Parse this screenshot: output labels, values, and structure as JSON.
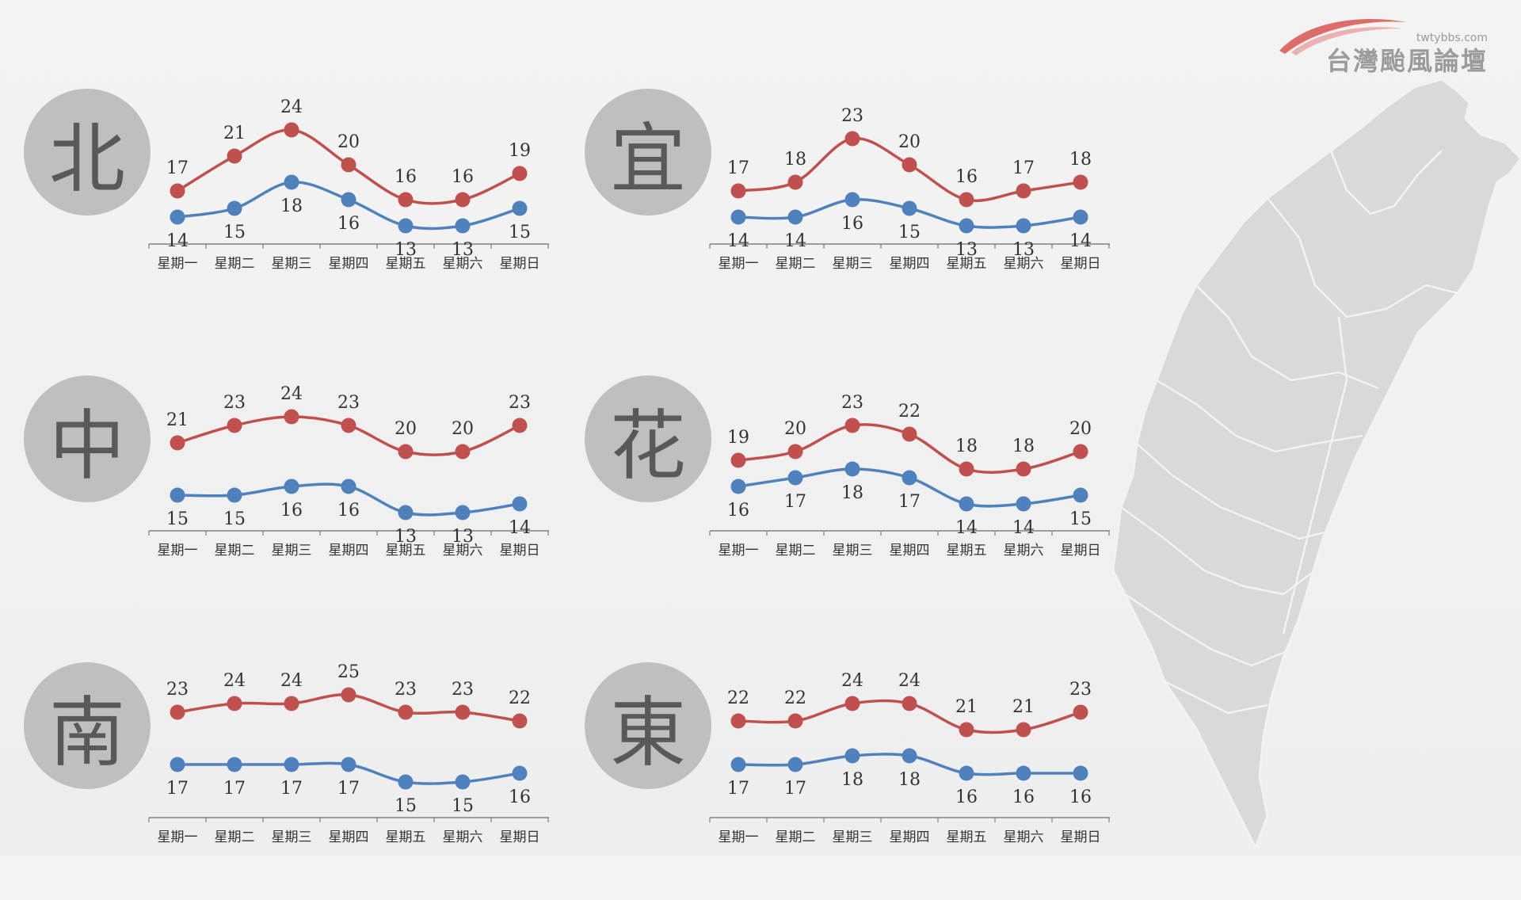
{
  "brand": {
    "url": "twtybbs.com",
    "title": "台灣颱風論壇"
  },
  "colors": {
    "high": "#c0504d",
    "low": "#4f81bd",
    "circle": "#bfbfbf",
    "circle_text": "#595959",
    "map": "#d9d9d9"
  },
  "days": [
    "星期一",
    "星期二",
    "星期三",
    "星期四",
    "星期五",
    "星期六",
    "星期日"
  ],
  "chart_data": [
    {
      "type": "line",
      "region": "北",
      "x": [
        "星期一",
        "星期二",
        "星期三",
        "星期四",
        "星期五",
        "星期六",
        "星期日"
      ],
      "series": [
        {
          "values": [
            17,
            21,
            24,
            20,
            16,
            16,
            19
          ],
          "color": "#c0504d"
        },
        {
          "values": [
            14,
            15,
            18,
            16,
            13,
            13,
            15
          ],
          "color": "#4f81bd"
        }
      ]
    },
    {
      "type": "line",
      "region": "宜",
      "x": [
        "星期一",
        "星期二",
        "星期三",
        "星期四",
        "星期五",
        "星期六",
        "星期日"
      ],
      "series": [
        {
          "values": [
            17,
            18,
            23,
            20,
            16,
            17,
            18
          ],
          "color": "#c0504d"
        },
        {
          "values": [
            14,
            14,
            16,
            15,
            13,
            13,
            14
          ],
          "color": "#4f81bd"
        }
      ]
    },
    {
      "type": "line",
      "region": "中",
      "x": [
        "星期一",
        "星期二",
        "星期三",
        "星期四",
        "星期五",
        "星期六",
        "星期日"
      ],
      "series": [
        {
          "values": [
            21,
            23,
            24,
            23,
            20,
            20,
            23
          ],
          "color": "#c0504d"
        },
        {
          "values": [
            15,
            15,
            16,
            16,
            13,
            13,
            14
          ],
          "color": "#4f81bd"
        }
      ]
    },
    {
      "type": "line",
      "region": "花",
      "x": [
        "星期一",
        "星期二",
        "星期三",
        "星期四",
        "星期五",
        "星期六",
        "星期日"
      ],
      "series": [
        {
          "values": [
            19,
            20,
            23,
            22,
            18,
            18,
            20
          ],
          "color": "#c0504d"
        },
        {
          "values": [
            16,
            17,
            18,
            17,
            14,
            14,
            15
          ],
          "color": "#4f81bd"
        }
      ]
    },
    {
      "type": "line",
      "region": "南",
      "x": [
        "星期一",
        "星期二",
        "星期三",
        "星期四",
        "星期五",
        "星期六",
        "星期日"
      ],
      "series": [
        {
          "values": [
            23,
            24,
            24,
            25,
            23,
            23,
            22
          ],
          "color": "#c0504d"
        },
        {
          "values": [
            17,
            17,
            17,
            17,
            15,
            15,
            16
          ],
          "color": "#4f81bd"
        }
      ]
    },
    {
      "type": "line",
      "region": "東",
      "x": [
        "星期一",
        "星期二",
        "星期三",
        "星期四",
        "星期五",
        "星期六",
        "星期日"
      ],
      "series": [
        {
          "values": [
            22,
            22,
            24,
            24,
            21,
            21,
            23
          ],
          "color": "#c0504d"
        },
        {
          "values": [
            17,
            17,
            18,
            18,
            16,
            16,
            16
          ],
          "color": "#4f81bd"
        }
      ]
    }
  ]
}
